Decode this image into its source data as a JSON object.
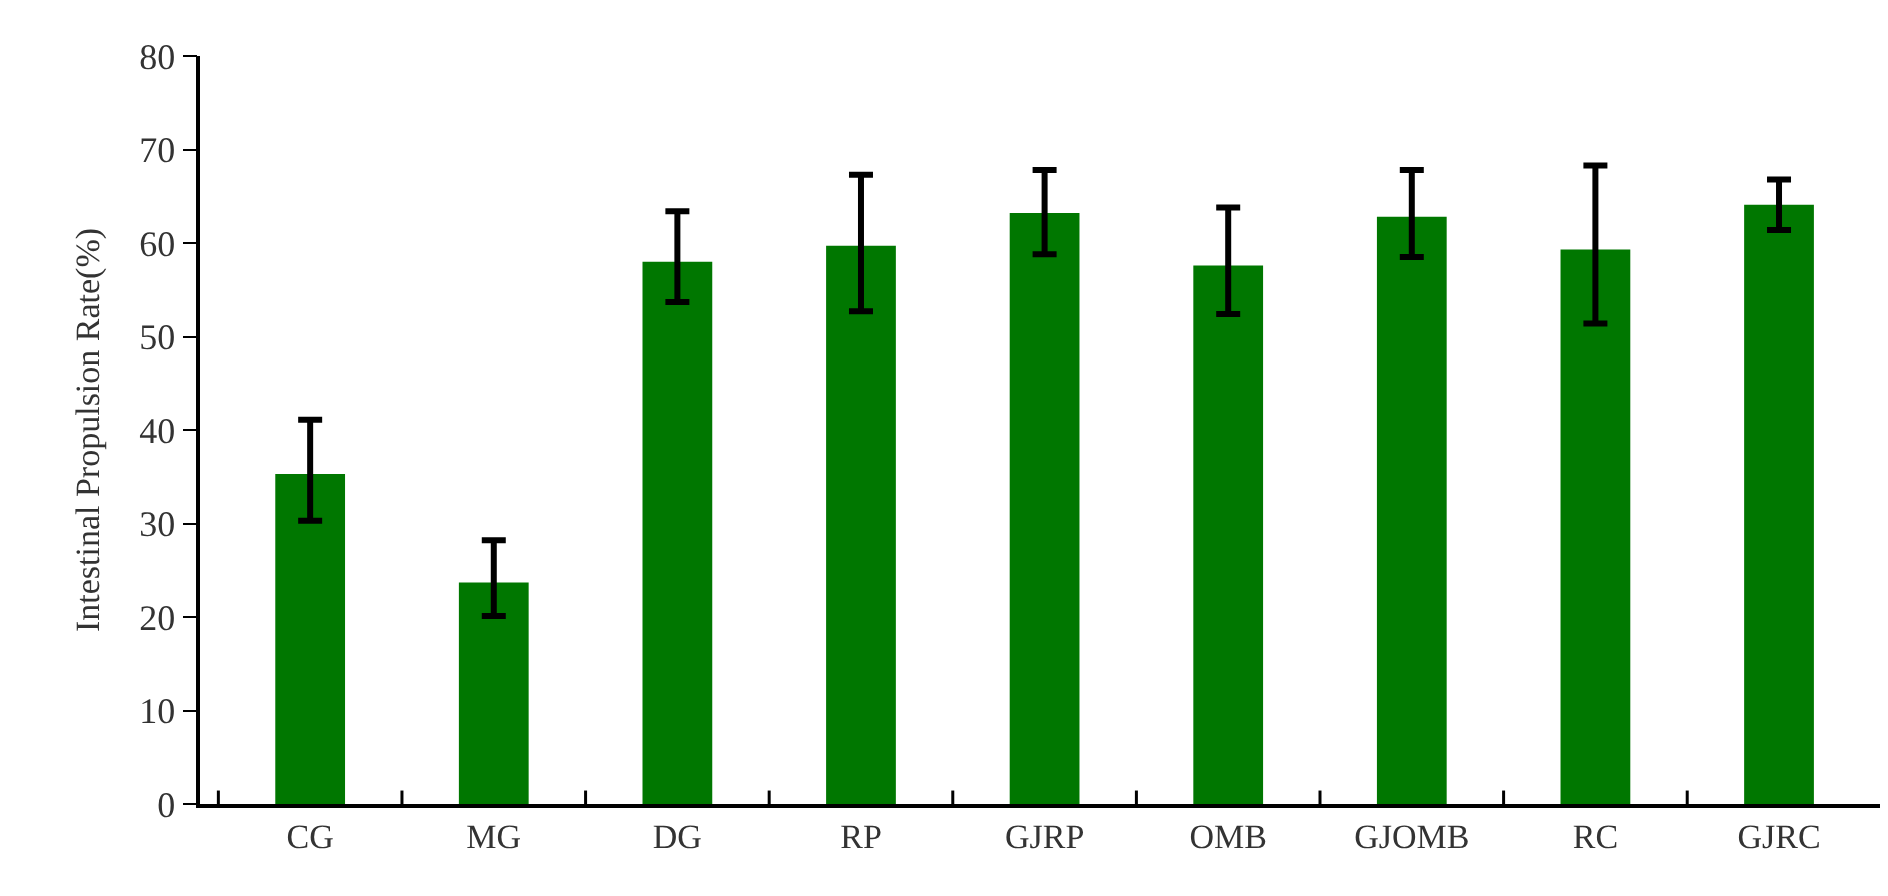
{
  "chart_data": {
    "type": "bar",
    "ylabel": "Intestinal Propulsion Rate(%)",
    "categories": [
      "CG",
      "MG",
      "DG",
      "RP",
      "GJRP",
      "OMB",
      "GJOMB",
      "RC",
      "GJRC"
    ],
    "values": [
      35.3,
      23.7,
      58.0,
      59.7,
      63.2,
      57.6,
      62.8,
      59.3,
      64.1
    ],
    "errors": [
      [
        30.3,
        41.1
      ],
      [
        20.1,
        28.2
      ],
      [
        53.7,
        63.4
      ],
      [
        52.7,
        67.3
      ],
      [
        58.8,
        67.8
      ],
      [
        52.4,
        63.8
      ],
      [
        58.5,
        67.8
      ],
      [
        51.4,
        68.3
      ],
      [
        61.4,
        66.8
      ]
    ],
    "color": "#007700",
    "ylim": [
      0,
      80
    ],
    "yticks": [
      0,
      10,
      20,
      30,
      40,
      50,
      60,
      70,
      80
    ]
  }
}
